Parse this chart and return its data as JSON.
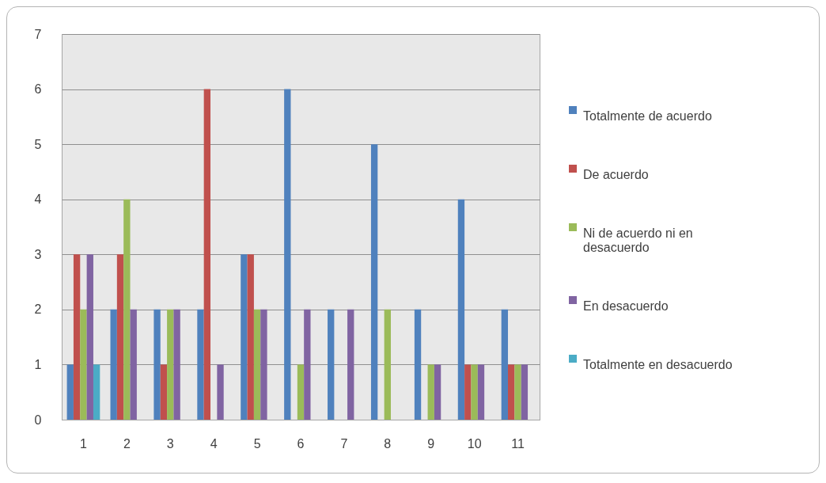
{
  "chart_data": {
    "type": "bar",
    "categories": [
      "1",
      "2",
      "3",
      "4",
      "5",
      "6",
      "7",
      "8",
      "9",
      "10",
      "11"
    ],
    "series": [
      {
        "name": "Totalmente de acuerdo",
        "color": "#4f81bd",
        "values": [
          1,
          2,
          2,
          2,
          3,
          6,
          2,
          5,
          2,
          4,
          2
        ]
      },
      {
        "name": "De acuerdo",
        "color": "#c0504d",
        "values": [
          3,
          3,
          1,
          6,
          3,
          0,
          0,
          0,
          0,
          1,
          1
        ]
      },
      {
        "name": "Ni de acuerdo ni en desacuerdo",
        "color": "#9bbb59",
        "values": [
          2,
          4,
          2,
          0,
          2,
          1,
          0,
          2,
          1,
          1,
          1
        ]
      },
      {
        "name": "En desacuerdo",
        "color": "#8064a2",
        "values": [
          3,
          2,
          2,
          1,
          2,
          2,
          2,
          0,
          1,
          1,
          1
        ]
      },
      {
        "name": "Totalmente en desacuerdo",
        "color": "#4bacc6",
        "values": [
          1,
          0,
          0,
          0,
          0,
          0,
          0,
          0,
          0,
          0,
          0
        ]
      }
    ],
    "ylim": [
      0,
      7
    ],
    "yticks": [
      0,
      1,
      2,
      3,
      4,
      5,
      6,
      7
    ],
    "grid": "y",
    "legend": "right"
  }
}
